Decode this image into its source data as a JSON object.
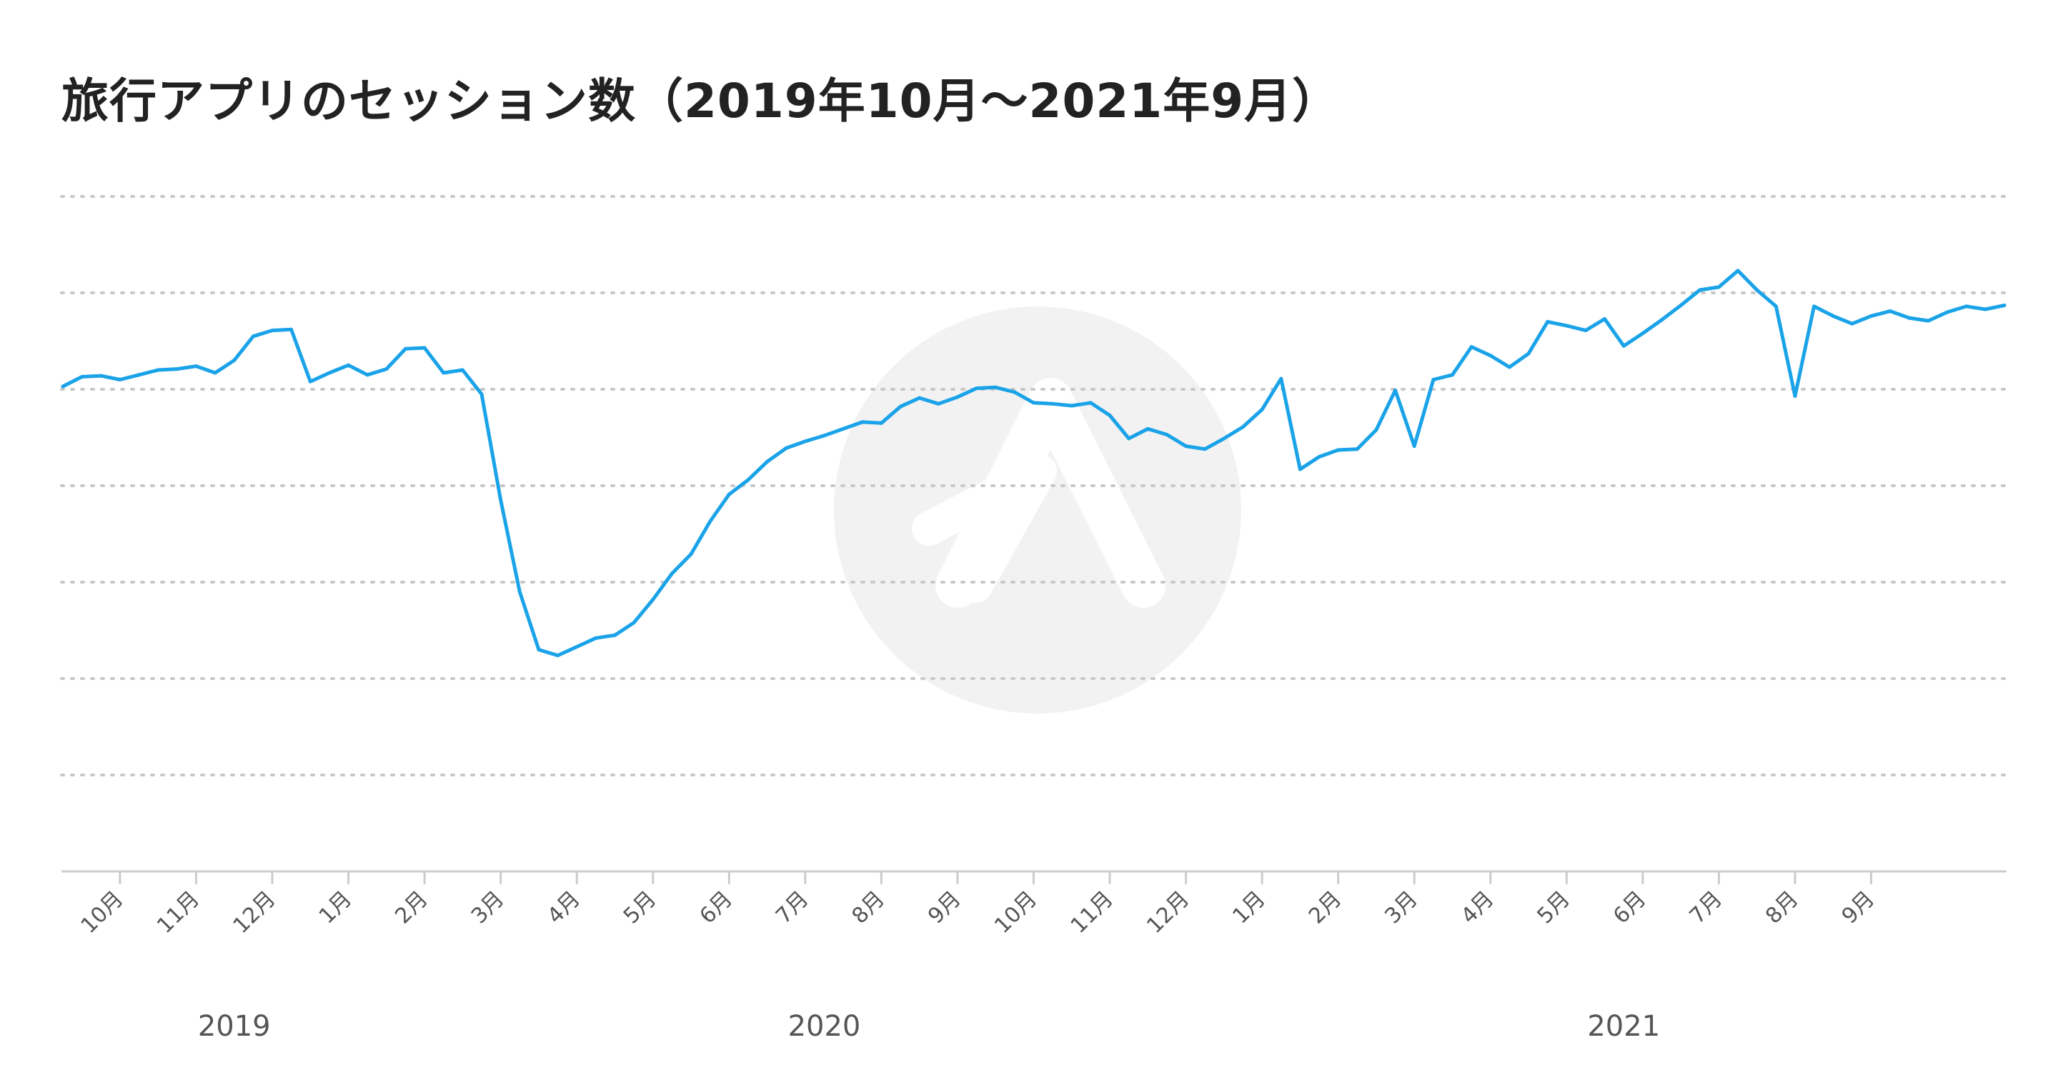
{
  "chart_data": {
    "type": "line",
    "title": "旅行アプリのセッション数（2019年10月〜2021年9月）",
    "xlabel": "",
    "ylabel": "",
    "grid": true,
    "y_tick_labels_shown": false,
    "month_ticks": [
      {
        "label": "10月",
        "x": 3
      },
      {
        "label": "11月",
        "x": 7
      },
      {
        "label": "12月",
        "x": 11
      },
      {
        "label": "1月",
        "x": 15
      },
      {
        "label": "2月",
        "x": 19
      },
      {
        "label": "3月",
        "x": 23
      },
      {
        "label": "4月",
        "x": 27
      },
      {
        "label": "5月",
        "x": 31
      },
      {
        "label": "6月",
        "x": 35
      },
      {
        "label": "7月",
        "x": 39
      },
      {
        "label": "8月",
        "x": 43
      },
      {
        "label": "9月",
        "x": 47
      },
      {
        "label": "10月",
        "x": 51
      },
      {
        "label": "11月",
        "x": 55
      },
      {
        "label": "12月",
        "x": 59
      },
      {
        "label": "1月",
        "x": 63
      },
      {
        "label": "2月",
        "x": 67
      },
      {
        "label": "3月",
        "x": 71
      },
      {
        "label": "4月",
        "x": 75
      },
      {
        "label": "5月",
        "x": 79
      },
      {
        "label": "6月",
        "x": 83
      },
      {
        "label": "7月",
        "x": 87
      },
      {
        "label": "8月",
        "x": 91
      },
      {
        "label": "9月",
        "x": 95
      }
    ],
    "year_labels": [
      {
        "label": "2019",
        "x": 9
      },
      {
        "label": "2020",
        "x": 40
      },
      {
        "label": "2021",
        "x": 82
      }
    ],
    "colors": {
      "line": "#1aa3e8",
      "grid": "#c8c8c8",
      "axis": "#cccccc",
      "watermark": "#f2f2f2"
    },
    "series": [
      {
        "values": [
          [
            0,
            50.3
          ],
          [
            1,
            51.3
          ],
          [
            2,
            51.4
          ],
          [
            3,
            51.0
          ],
          [
            4,
            51.5
          ],
          [
            5,
            52.0
          ],
          [
            6,
            52.1
          ],
          [
            7,
            52.4
          ],
          [
            8,
            51.7
          ],
          [
            9,
            53.0
          ],
          [
            10,
            55.5
          ],
          [
            11,
            56.1
          ],
          [
            12,
            56.2
          ],
          [
            13,
            50.8
          ],
          [
            14,
            51.7
          ],
          [
            15,
            52.5
          ],
          [
            16,
            51.5
          ],
          [
            17,
            52.1
          ],
          [
            18,
            54.2
          ],
          [
            19,
            54.3
          ],
          [
            20,
            51.7
          ],
          [
            21,
            52.0
          ],
          [
            22,
            49.5
          ],
          [
            23,
            38.5
          ],
          [
            24,
            29.0
          ],
          [
            25,
            23.0
          ],
          [
            26,
            22.4
          ],
          [
            27,
            23.3
          ],
          [
            28,
            24.2
          ],
          [
            29,
            24.5
          ],
          [
            30,
            25.8
          ],
          [
            31,
            28.2
          ],
          [
            32,
            30.9
          ],
          [
            33,
            32.9
          ],
          [
            34,
            36.3
          ],
          [
            35,
            39.1
          ],
          [
            36,
            40.6
          ],
          [
            37,
            42.5
          ],
          [
            38,
            43.9
          ],
          [
            39,
            44.6
          ],
          [
            40,
            45.2
          ],
          [
            41,
            45.9
          ],
          [
            42,
            46.6
          ],
          [
            43,
            46.5
          ],
          [
            44,
            48.2
          ],
          [
            45,
            49.1
          ],
          [
            46,
            48.5
          ],
          [
            47,
            49.2
          ],
          [
            48,
            50.1
          ],
          [
            49,
            50.2
          ],
          [
            50,
            49.7
          ],
          [
            51,
            48.6
          ],
          [
            52,
            48.5
          ],
          [
            53,
            48.3
          ],
          [
            54,
            48.6
          ],
          [
            55,
            47.3
          ],
          [
            56,
            44.9
          ],
          [
            57,
            45.9
          ],
          [
            58,
            45.3
          ],
          [
            59,
            44.1
          ],
          [
            60,
            43.8
          ],
          [
            61,
            44.9
          ],
          [
            62,
            46.1
          ],
          [
            63,
            47.9
          ],
          [
            64,
            51.1
          ],
          [
            65,
            41.7
          ],
          [
            66,
            43.0
          ],
          [
            67,
            43.7
          ],
          [
            68,
            43.8
          ],
          [
            69,
            45.8
          ],
          [
            70,
            49.9
          ],
          [
            71,
            44.1
          ],
          [
            72,
            51.0
          ],
          [
            73,
            51.5
          ],
          [
            74,
            54.4
          ],
          [
            75,
            53.5
          ],
          [
            76,
            52.3
          ],
          [
            77,
            53.7
          ],
          [
            78,
            57.0
          ],
          [
            79,
            56.6
          ],
          [
            80,
            56.1
          ],
          [
            81,
            57.3
          ],
          [
            82,
            54.5
          ],
          [
            83,
            55.8
          ],
          [
            84,
            57.2
          ],
          [
            85,
            58.7
          ],
          [
            86,
            60.3
          ],
          [
            87,
            60.6
          ],
          [
            88,
            62.3
          ],
          [
            89,
            60.3
          ],
          [
            90,
            58.6
          ],
          [
            91,
            49.3
          ],
          [
            92,
            58.6
          ],
          [
            93,
            57.6
          ],
          [
            94,
            56.8
          ],
          [
            95,
            57.6
          ],
          [
            96,
            58.1
          ],
          [
            97,
            57.4
          ],
          [
            98,
            57.1
          ],
          [
            99,
            58.0
          ],
          [
            100,
            58.6
          ],
          [
            101,
            58.3
          ],
          [
            102,
            58.7
          ]
        ]
      }
    ],
    "xlim": [
      0,
      102
    ],
    "ylim": [
      0,
      70
    ]
  }
}
